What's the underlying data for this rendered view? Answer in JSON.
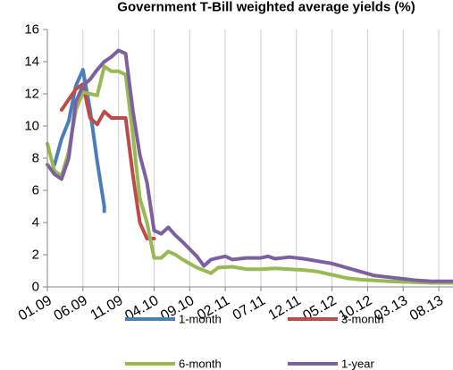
{
  "chart_data": {
    "type": "line",
    "title": "Government T-Bill weighted average yields (%)",
    "xlabel": "",
    "ylabel": "",
    "x_ticks": [
      "01.09",
      "06.09",
      "11.09",
      "04.10",
      "09.10",
      "02.11",
      "07.11",
      "12.11",
      "05.12",
      "10.12",
      "03.13",
      "08.13"
    ],
    "x_range": [
      "01.09",
      "10.13"
    ],
    "ylim": [
      0,
      16
    ],
    "y_ticks": [
      0,
      2,
      4,
      6,
      8,
      10,
      12,
      14,
      16
    ],
    "grid": "vertical",
    "legend_position": "bottom",
    "series": [
      {
        "name": "1-month",
        "color": "#4a7ebb",
        "points": [
          [
            "02.09",
            7.6
          ],
          [
            "03.09",
            9.2
          ],
          [
            "04.09",
            10.3
          ],
          [
            "05.09",
            12.5
          ],
          [
            "06.09",
            13.5
          ],
          [
            "07.09",
            11.0
          ],
          [
            "08.09",
            7.8
          ],
          [
            "09.09",
            5.0
          ],
          [
            "09.09",
            4.7
          ]
        ]
      },
      {
        "name": "3-month",
        "color": "#be4b48",
        "points": [
          [
            "03.09",
            11.0
          ],
          [
            "05.09",
            12.3
          ],
          [
            "06.09",
            12.6
          ],
          [
            "07.09",
            10.5
          ],
          [
            "08.09",
            10.1
          ],
          [
            "09.09",
            10.9
          ],
          [
            "10.09",
            10.5
          ],
          [
            "11.09",
            10.5
          ],
          [
            "12.09",
            10.5
          ],
          [
            "01.10",
            7.0
          ],
          [
            "02.10",
            4.0
          ],
          [
            "03.10",
            3.0
          ],
          [
            "04.10",
            3.0
          ]
        ]
      },
      {
        "name": "6-month",
        "color": "#98b954",
        "points": [
          [
            "01.09",
            8.9
          ],
          [
            "02.09",
            7.2
          ],
          [
            "03.09",
            6.9
          ],
          [
            "04.09",
            8.4
          ],
          [
            "05.09",
            11.0
          ],
          [
            "06.09",
            12.1
          ],
          [
            "07.09",
            12.0
          ],
          [
            "08.09",
            11.9
          ],
          [
            "09.09",
            13.7
          ],
          [
            "10.09",
            13.4
          ],
          [
            "11.09",
            13.4
          ],
          [
            "12.09",
            13.2
          ],
          [
            "01.10",
            9.5
          ],
          [
            "02.10",
            5.5
          ],
          [
            "03.10",
            4.0
          ],
          [
            "04.10",
            1.8
          ],
          [
            "05.10",
            1.8
          ],
          [
            "06.10",
            2.2
          ],
          [
            "07.10",
            2.0
          ],
          [
            "08.10",
            1.7
          ],
          [
            "10.10",
            1.2
          ],
          [
            "12.10",
            0.85
          ],
          [
            "01.11",
            1.2
          ],
          [
            "03.11",
            1.25
          ],
          [
            "05.11",
            1.1
          ],
          [
            "07.11",
            1.1
          ],
          [
            "09.11",
            1.15
          ],
          [
            "11.11",
            1.1
          ],
          [
            "01.12",
            1.05
          ],
          [
            "03.12",
            0.95
          ],
          [
            "05.12",
            0.75
          ],
          [
            "07.12",
            0.55
          ],
          [
            "09.12",
            0.45
          ],
          [
            "11.12",
            0.4
          ],
          [
            "01.13",
            0.35
          ],
          [
            "04.13",
            0.3
          ],
          [
            "07.13",
            0.25
          ],
          [
            "10.13",
            0.25
          ]
        ]
      },
      {
        "name": "1-year",
        "color": "#7d60a0",
        "points": [
          [
            "01.09",
            7.6
          ],
          [
            "02.09",
            7.0
          ],
          [
            "03.09",
            6.7
          ],
          [
            "04.09",
            8.0
          ],
          [
            "05.09",
            11.5
          ],
          [
            "06.09",
            12.5
          ],
          [
            "07.09",
            12.9
          ],
          [
            "08.09",
            13.5
          ],
          [
            "09.09",
            14.0
          ],
          [
            "10.09",
            14.3
          ],
          [
            "11.09",
            14.7
          ],
          [
            "12.09",
            14.5
          ],
          [
            "01.10",
            11.0
          ],
          [
            "02.10",
            8.2
          ],
          [
            "03.10",
            6.5
          ],
          [
            "04.10",
            3.5
          ],
          [
            "05.10",
            3.3
          ],
          [
            "06.10",
            3.7
          ],
          [
            "07.10",
            3.2
          ],
          [
            "08.10",
            2.8
          ],
          [
            "10.10",
            1.9
          ],
          [
            "11.10",
            1.3
          ],
          [
            "12.10",
            1.7
          ],
          [
            "01.11",
            1.8
          ],
          [
            "02.11",
            1.9
          ],
          [
            "03.11",
            1.7
          ],
          [
            "05.11",
            1.8
          ],
          [
            "07.11",
            1.8
          ],
          [
            "08.11",
            1.9
          ],
          [
            "09.11",
            1.75
          ],
          [
            "11.11",
            1.85
          ],
          [
            "01.12",
            1.75
          ],
          [
            "03.12",
            1.6
          ],
          [
            "05.12",
            1.45
          ],
          [
            "07.12",
            1.2
          ],
          [
            "09.12",
            0.95
          ],
          [
            "11.12",
            0.7
          ],
          [
            "01.13",
            0.6
          ],
          [
            "03.13",
            0.5
          ],
          [
            "05.13",
            0.4
          ],
          [
            "07.13",
            0.35
          ],
          [
            "10.13",
            0.35
          ]
        ]
      }
    ]
  }
}
